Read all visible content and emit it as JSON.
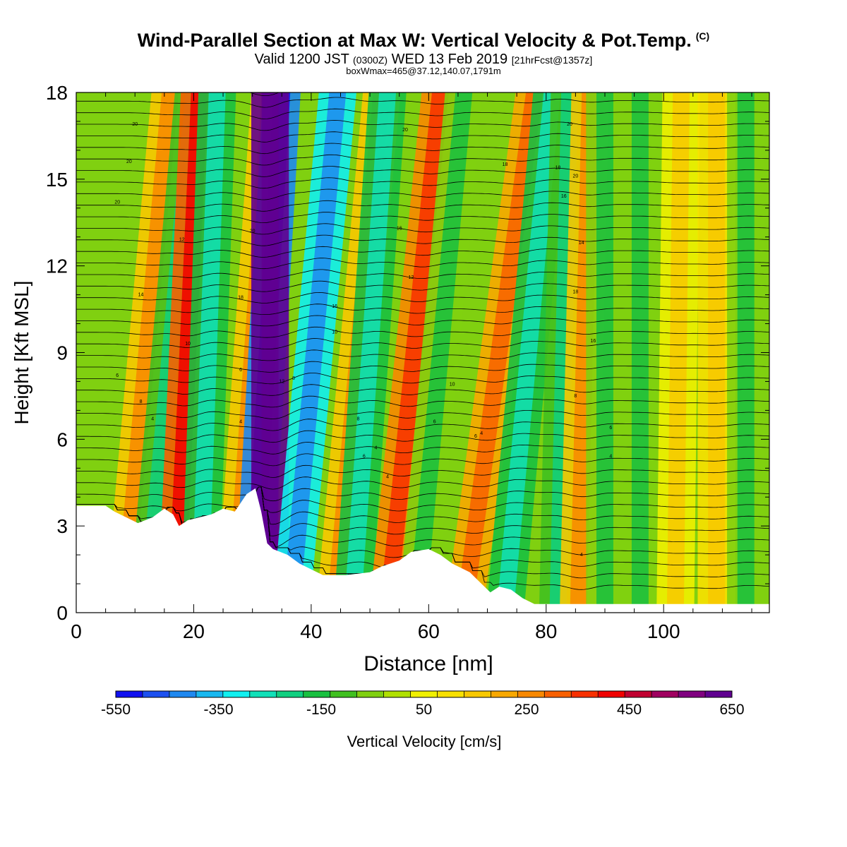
{
  "header": {
    "title": "Wind-Parallel Section at Max W: Vertical Velocity & Pot.Temp.",
    "title_mark": "(C)",
    "subtitle_valid": "Valid 1200 JST",
    "subtitle_z": "(0300Z)",
    "subtitle_date": "WED 13 Feb 2019",
    "subtitle_fcst": "[21hrFcst@1357z]",
    "subtitle2": "boxWmax=465@37.12,140.07,1791m"
  },
  "chart_data": {
    "type": "heatmap",
    "xlabel": "Distance [nm]",
    "ylabel": "Height [Kft MSL]",
    "xlim": [
      0,
      118
    ],
    "ylim": [
      0,
      18
    ],
    "xticks": [
      0,
      20,
      40,
      60,
      80,
      100
    ],
    "yticks": [
      0,
      3,
      6,
      9,
      12,
      15,
      18
    ],
    "colorbar": {
      "label": "Vertical Velocity [cm/s]",
      "range": [
        -550,
        650
      ],
      "ticks": [
        -550,
        -350,
        -150,
        50,
        250,
        450,
        650
      ],
      "colors": [
        "#1010f0",
        "#1c50f0",
        "#1e88f0",
        "#18b8f0",
        "#10f0f0",
        "#10e0b8",
        "#10d080",
        "#18c040",
        "#40c020",
        "#80d010",
        "#b0e000",
        "#f0f000",
        "#f8e000",
        "#f8c800",
        "#f8a800",
        "#f88800",
        "#f86000",
        "#f83000",
        "#f00000",
        "#c00030",
        "#a00060",
        "#800080",
        "#600090"
      ]
    },
    "velocity_bands": [
      {
        "x_surface": 8,
        "lean": 8,
        "w": 150
      },
      {
        "x_surface": 12,
        "lean": 8,
        "w": -100
      },
      {
        "x_surface": 17,
        "lean": 4,
        "w": 300
      },
      {
        "x_surface": 21,
        "lean": 3,
        "w": -150
      },
      {
        "x_surface": 27,
        "lean": 6,
        "w": 150
      },
      {
        "x_surface": 30,
        "lean": 5,
        "w": -400
      },
      {
        "x_surface": 33,
        "lean": 0,
        "w": 600
      },
      {
        "x_surface": 36.5,
        "lean": 8,
        "w": -300
      },
      {
        "x_surface": 44,
        "lean": 8,
        "w": 150
      },
      {
        "x_surface": 47,
        "lean": 6,
        "w": -150
      },
      {
        "x_surface": 53,
        "lean": 9,
        "w": 250
      },
      {
        "x_surface": 58,
        "lean": 8,
        "w": -50
      },
      {
        "x_surface": 66,
        "lean": 12,
        "w": 200
      },
      {
        "x_surface": 73,
        "lean": 8,
        "w": -150
      },
      {
        "x_surface": 82,
        "lean": 2,
        "w": -120
      },
      {
        "x_surface": 85.5,
        "lean": 2,
        "w": 180
      },
      {
        "x_surface": 90,
        "lean": 0,
        "w": -80
      },
      {
        "x_surface": 96,
        "lean": 0,
        "w": -40
      },
      {
        "x_surface": 102,
        "lean": 1,
        "w": 60
      },
      {
        "x_surface": 109,
        "lean": 0,
        "w": 80
      },
      {
        "x_surface": 114,
        "lean": 0,
        "w": -60
      }
    ],
    "terrain_kft": [
      [
        0,
        3.7
      ],
      [
        5,
        3.7
      ],
      [
        6.5,
        3.5
      ],
      [
        8.5,
        3.3
      ],
      [
        10.5,
        3.1
      ],
      [
        13,
        3.3
      ],
      [
        15,
        3.6
      ],
      [
        16.5,
        3.4
      ],
      [
        17.5,
        3.0
      ],
      [
        19,
        3.2
      ],
      [
        21,
        3.3
      ],
      [
        23,
        3.4
      ],
      [
        25,
        3.6
      ],
      [
        27,
        3.5
      ],
      [
        29,
        4.1
      ],
      [
        30.5,
        4.3
      ],
      [
        31.5,
        3.5
      ],
      [
        32.5,
        2.4
      ],
      [
        33.5,
        2.2
      ],
      [
        36,
        2.0
      ],
      [
        38,
        1.7
      ],
      [
        40,
        1.5
      ],
      [
        42,
        1.3
      ],
      [
        46,
        1.3
      ],
      [
        50,
        1.4
      ],
      [
        52,
        1.6
      ],
      [
        55,
        1.8
      ],
      [
        57,
        2.1
      ],
      [
        60,
        2.2
      ],
      [
        62,
        2.0
      ],
      [
        64,
        1.7
      ],
      [
        67,
        1.4
      ],
      [
        69,
        1.0
      ],
      [
        70.5,
        0.7
      ],
      [
        72,
        0.9
      ],
      [
        74,
        0.8
      ],
      [
        76,
        0.5
      ],
      [
        78,
        0.3
      ],
      [
        118,
        0.3
      ]
    ],
    "contour_labels": [
      "4",
      "6",
      "8",
      "10",
      "12",
      "14",
      "16",
      "18",
      "20"
    ]
  }
}
